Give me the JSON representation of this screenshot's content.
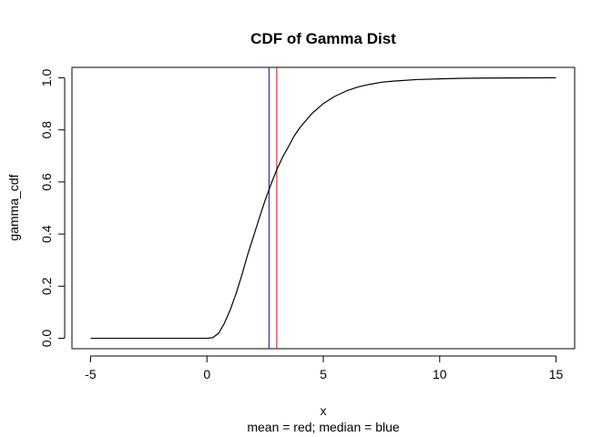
{
  "chart_data": {
    "type": "line",
    "title": "CDF of Gamma Dist",
    "xlabel": "x",
    "subtitle": "mean = red; median = blue",
    "ylabel": "gamma_cdf",
    "xlim": [
      -5.8,
      15.8
    ],
    "ylim": [
      -0.04,
      1.04
    ],
    "x_ticks": [
      -5,
      0,
      5,
      10,
      15
    ],
    "y_ticks": [
      0.0,
      0.2,
      0.4,
      0.6,
      0.8,
      1.0
    ],
    "x_tick_labels": [
      "-5",
      "0",
      "5",
      "10",
      "15"
    ],
    "y_tick_labels": [
      "0.0",
      "0.2",
      "0.4",
      "0.6",
      "0.8",
      "1.0"
    ],
    "grid": false,
    "series": [
      {
        "color": "#000000",
        "x": [
          -5,
          -4,
          -3,
          -2,
          -1,
          0,
          0.25,
          0.5,
          0.75,
          1,
          1.25,
          1.5,
          1.75,
          2,
          2.25,
          2.5,
          2.75,
          3,
          3.25,
          3.5,
          3.75,
          4,
          4.5,
          5,
          5.5,
          6,
          6.5,
          7,
          7.5,
          8,
          9,
          10,
          11,
          12,
          13,
          14,
          15
        ],
        "y": [
          0,
          0,
          0,
          0,
          0,
          0,
          0.0024,
          0.019,
          0.0577,
          0.1088,
          0.1714,
          0.2425,
          0.3209,
          0.391,
          0.4614,
          0.5297,
          0.5907,
          0.6472,
          0.695,
          0.735,
          0.777,
          0.8094,
          0.862,
          0.901,
          0.929,
          0.95,
          0.965,
          0.975,
          0.983,
          0.987,
          0.993,
          0.996,
          0.998,
          0.999,
          0.9995,
          0.9998,
          1.0
        ]
      }
    ],
    "vlines": [
      {
        "label": "mean",
        "x": 3.0,
        "color": "#df2f3a"
      },
      {
        "label": "median",
        "x": 2.67,
        "color": "#2b2bb5"
      }
    ]
  }
}
